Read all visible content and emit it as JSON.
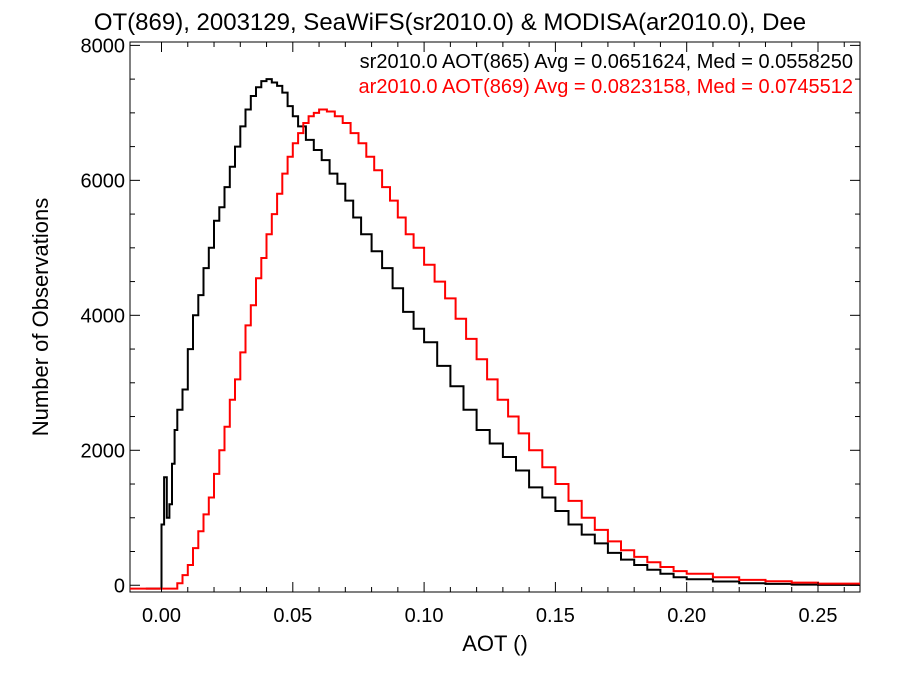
{
  "chart_data": {
    "type": "line",
    "title": "OT(869), 2003129, SeaWiFS(sr2010.0) & MODISA(ar2010.0), Dee",
    "xlabel": "AOT ()",
    "ylabel": "Number of Observations",
    "xlim": [
      -0.012,
      0.266
    ],
    "ylim": [
      -100,
      8050
    ],
    "xticks": [
      0.0,
      0.05,
      0.1,
      0.15,
      0.2,
      0.25
    ],
    "xtick_labels": [
      "0.00",
      "0.05",
      "0.10",
      "0.15",
      "0.20",
      "0.25"
    ],
    "yticks": [
      0,
      2000,
      4000,
      6000,
      8000
    ],
    "ytick_labels": [
      "0",
      "2000",
      "4000",
      "6000",
      "8000"
    ],
    "grid": false,
    "legend_position": "top-right",
    "series": [
      {
        "name": "sr2010.0",
        "color": "#000000",
        "legend_text": "sr2010.0 AOT(865) Avg = 0.0651624, Med = 0.0558250",
        "points": [
          [
            -0.006,
            -50
          ],
          [
            0.0,
            -50
          ],
          [
            0.0,
            900
          ],
          [
            0.001,
            1600
          ],
          [
            0.002,
            1000
          ],
          [
            0.003,
            1200
          ],
          [
            0.004,
            1800
          ],
          [
            0.005,
            2300
          ],
          [
            0.006,
            2600
          ],
          [
            0.008,
            2900
          ],
          [
            0.01,
            3500
          ],
          [
            0.012,
            4000
          ],
          [
            0.014,
            4300
          ],
          [
            0.016,
            4700
          ],
          [
            0.018,
            5000
          ],
          [
            0.02,
            5400
          ],
          [
            0.022,
            5600
          ],
          [
            0.024,
            5900
          ],
          [
            0.026,
            6200
          ],
          [
            0.028,
            6500
          ],
          [
            0.03,
            6800
          ],
          [
            0.032,
            7050
          ],
          [
            0.034,
            7250
          ],
          [
            0.036,
            7380
          ],
          [
            0.038,
            7470
          ],
          [
            0.04,
            7500
          ],
          [
            0.042,
            7450
          ],
          [
            0.044,
            7400
          ],
          [
            0.046,
            7300
          ],
          [
            0.048,
            7100
          ],
          [
            0.05,
            6950
          ],
          [
            0.052,
            6800
          ],
          [
            0.055,
            6600
          ],
          [
            0.058,
            6450
          ],
          [
            0.061,
            6300
          ],
          [
            0.064,
            6100
          ],
          [
            0.067,
            5950
          ],
          [
            0.07,
            5700
          ],
          [
            0.073,
            5450
          ],
          [
            0.076,
            5200
          ],
          [
            0.08,
            4950
          ],
          [
            0.084,
            4700
          ],
          [
            0.088,
            4400
          ],
          [
            0.092,
            4050
          ],
          [
            0.096,
            3800
          ],
          [
            0.1,
            3600
          ],
          [
            0.105,
            3250
          ],
          [
            0.11,
            2950
          ],
          [
            0.115,
            2600
          ],
          [
            0.12,
            2300
          ],
          [
            0.125,
            2100
          ],
          [
            0.13,
            1900
          ],
          [
            0.135,
            1700
          ],
          [
            0.14,
            1450
          ],
          [
            0.145,
            1300
          ],
          [
            0.15,
            1100
          ],
          [
            0.155,
            900
          ],
          [
            0.16,
            750
          ],
          [
            0.165,
            620
          ],
          [
            0.17,
            480
          ],
          [
            0.175,
            380
          ],
          [
            0.18,
            300
          ],
          [
            0.185,
            230
          ],
          [
            0.19,
            170
          ],
          [
            0.195,
            120
          ],
          [
            0.2,
            90
          ],
          [
            0.21,
            55
          ],
          [
            0.22,
            30
          ],
          [
            0.23,
            20
          ],
          [
            0.24,
            10
          ],
          [
            0.25,
            5
          ],
          [
            0.266,
            0
          ]
        ]
      },
      {
        "name": "ar2010.0",
        "color": "#ff0000",
        "legend_text": "ar2010.0 AOT(869) Avg = 0.0823158, Med = 0.0745512",
        "points": [
          [
            -0.012,
            -50
          ],
          [
            0.005,
            -50
          ],
          [
            0.006,
            30
          ],
          [
            0.008,
            150
          ],
          [
            0.01,
            300
          ],
          [
            0.012,
            550
          ],
          [
            0.014,
            800
          ],
          [
            0.016,
            1050
          ],
          [
            0.018,
            1300
          ],
          [
            0.02,
            1650
          ],
          [
            0.022,
            2000
          ],
          [
            0.024,
            2350
          ],
          [
            0.026,
            2750
          ],
          [
            0.028,
            3050
          ],
          [
            0.03,
            3450
          ],
          [
            0.032,
            3850
          ],
          [
            0.034,
            4150
          ],
          [
            0.036,
            4550
          ],
          [
            0.038,
            4850
          ],
          [
            0.04,
            5200
          ],
          [
            0.042,
            5500
          ],
          [
            0.044,
            5800
          ],
          [
            0.046,
            6100
          ],
          [
            0.048,
            6350
          ],
          [
            0.05,
            6550
          ],
          [
            0.052,
            6700
          ],
          [
            0.054,
            6850
          ],
          [
            0.056,
            6950
          ],
          [
            0.058,
            7000
          ],
          [
            0.06,
            7050
          ],
          [
            0.063,
            7020
          ],
          [
            0.066,
            6950
          ],
          [
            0.069,
            6850
          ],
          [
            0.072,
            6700
          ],
          [
            0.075,
            6550
          ],
          [
            0.078,
            6350
          ],
          [
            0.081,
            6150
          ],
          [
            0.084,
            5900
          ],
          [
            0.087,
            5700
          ],
          [
            0.09,
            5450
          ],
          [
            0.093,
            5200
          ],
          [
            0.096,
            5000
          ],
          [
            0.1,
            4750
          ],
          [
            0.104,
            4500
          ],
          [
            0.108,
            4250
          ],
          [
            0.112,
            3950
          ],
          [
            0.116,
            3650
          ],
          [
            0.12,
            3350
          ],
          [
            0.124,
            3050
          ],
          [
            0.128,
            2750
          ],
          [
            0.132,
            2500
          ],
          [
            0.136,
            2250
          ],
          [
            0.14,
            2000
          ],
          [
            0.145,
            1750
          ],
          [
            0.15,
            1500
          ],
          [
            0.155,
            1250
          ],
          [
            0.16,
            1000
          ],
          [
            0.165,
            820
          ],
          [
            0.17,
            650
          ],
          [
            0.175,
            520
          ],
          [
            0.18,
            420
          ],
          [
            0.185,
            340
          ],
          [
            0.19,
            270
          ],
          [
            0.195,
            210
          ],
          [
            0.2,
            170
          ],
          [
            0.21,
            120
          ],
          [
            0.22,
            80
          ],
          [
            0.23,
            60
          ],
          [
            0.24,
            40
          ],
          [
            0.25,
            25
          ],
          [
            0.266,
            5
          ]
        ]
      }
    ]
  }
}
